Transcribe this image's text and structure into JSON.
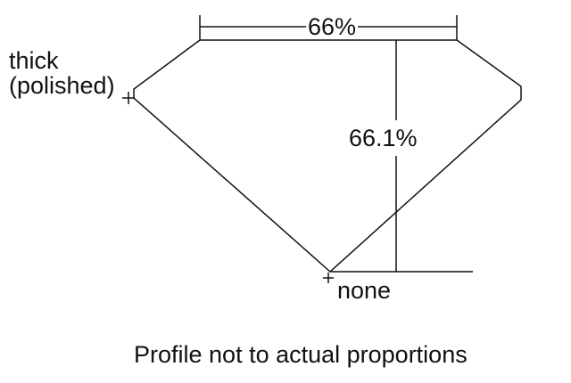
{
  "diagram": {
    "table_label": "66%",
    "depth_label": "66.1%",
    "girdle_label_line1": "thick",
    "girdle_label_line2": "(polished)",
    "culet_label": "none",
    "caption": "Profile not to actual proportions",
    "line_color": "#111111"
  }
}
